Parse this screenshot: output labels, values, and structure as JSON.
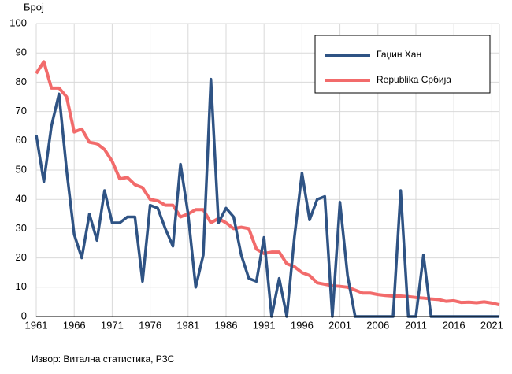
{
  "chart_data": {
    "type": "line",
    "y_label": "Број",
    "source": "Извор: Витална статистика, РЗС",
    "x": [
      1961,
      1962,
      1963,
      1964,
      1965,
      1966,
      1967,
      1968,
      1969,
      1970,
      1971,
      1972,
      1973,
      1974,
      1975,
      1976,
      1977,
      1978,
      1979,
      1980,
      1981,
      1982,
      1983,
      1984,
      1985,
      1986,
      1987,
      1988,
      1989,
      1990,
      1991,
      1992,
      1993,
      1994,
      1995,
      1996,
      1997,
      1998,
      1999,
      2000,
      2001,
      2002,
      2003,
      2004,
      2005,
      2006,
      2007,
      2008,
      2009,
      2010,
      2011,
      2012,
      2013,
      2014,
      2015,
      2016,
      2017,
      2018,
      2019,
      2020,
      2021,
      2022
    ],
    "series": [
      {
        "name": "Гаџин Хан",
        "color": "#2f5384",
        "values": [
          62,
          46,
          65,
          76,
          50,
          28,
          20,
          35,
          26,
          43,
          32,
          32,
          34,
          34,
          12,
          38,
          37,
          30,
          24,
          52,
          35,
          10,
          21,
          81,
          32,
          37,
          34,
          21,
          13,
          12,
          27,
          0,
          13,
          0,
          27,
          49,
          33,
          40,
          41,
          0,
          39,
          14,
          0,
          0,
          0,
          0,
          0,
          0,
          43,
          0,
          0,
          21,
          0,
          0,
          0,
          0,
          0,
          0,
          0,
          0,
          0,
          0
        ]
      },
      {
        "name": "Republika Србија",
        "color": "#f26b6b",
        "values": [
          83,
          87,
          78,
          78,
          75,
          63,
          64,
          59.5,
          59,
          57,
          53,
          47,
          47.5,
          45,
          44,
          40,
          39.5,
          38,
          38,
          34,
          35,
          36.5,
          36.5,
          32,
          33.5,
          32,
          30,
          30.5,
          30,
          23,
          21.5,
          22,
          22,
          18,
          17,
          15,
          14,
          11.5,
          11,
          10.5,
          10.3,
          10,
          9,
          8,
          8,
          7.5,
          7.2,
          7,
          7,
          6.8,
          6.5,
          6.3,
          6,
          5.8,
          5.2,
          5.4,
          4.8,
          4.9,
          4.7,
          5,
          4.6,
          4
        ]
      }
    ],
    "xlim": [
      1961,
      2022
    ],
    "ylim": [
      0,
      100
    ],
    "xticks": [
      1961,
      1966,
      1971,
      1976,
      1981,
      1986,
      1991,
      1996,
      2001,
      2006,
      2011,
      2016,
      2021
    ],
    "yticks": [
      0,
      10,
      20,
      30,
      40,
      50,
      60,
      70,
      80,
      90,
      100
    ],
    "grid": true,
    "legend": "upper right"
  }
}
